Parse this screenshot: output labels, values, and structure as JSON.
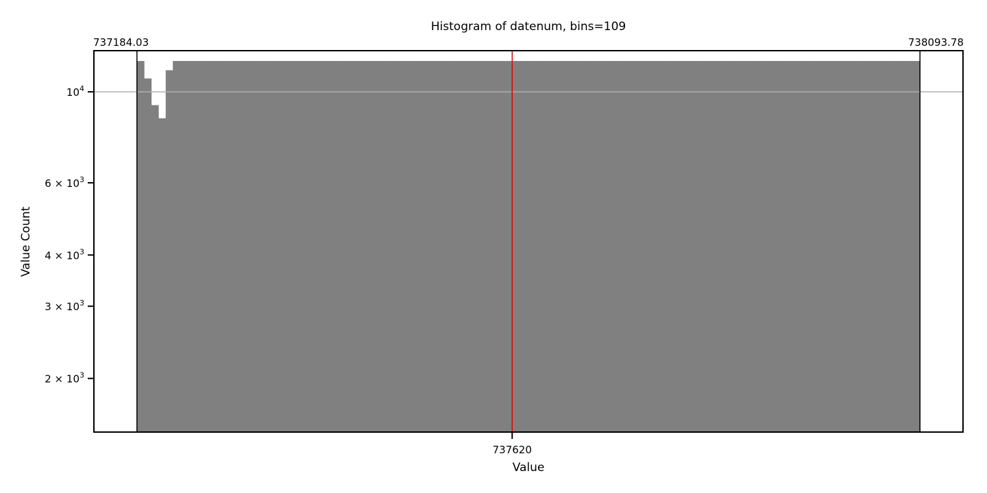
{
  "chart_data": {
    "type": "bar",
    "title": "Histogram of datenum, bins=109",
    "xlabel": "Value",
    "ylabel": "Value Count",
    "y_scale": "log",
    "ylim": [
      1480,
      12600
    ],
    "xlim": [
      737134.03,
      738143.78
    ],
    "data_min": 737184.03,
    "data_max": 738093.78,
    "data_min_label": "737184.03",
    "data_max_label": "738093.78",
    "marker_value": 737620,
    "marker_label": "737620",
    "marker_color": "#e00000",
    "bar_color": "#808080",
    "reference_line": 10000,
    "reference_line_color": "#b0b0b0",
    "y_ticks": [
      {
        "value": 10000,
        "base": "10",
        "exp": "4"
      },
      {
        "value": 6000,
        "base": "6 × 10",
        "exp": "3"
      },
      {
        "value": 4000,
        "base": "4 × 10",
        "exp": "3"
      },
      {
        "value": 3000,
        "base": "3 × 10",
        "exp": "3"
      },
      {
        "value": 2000,
        "base": "2 × 10",
        "exp": "3"
      }
    ],
    "bin_width": 8.34633,
    "values": [
      11890,
      10780,
      9280,
      8620,
      11290,
      11890,
      11890,
      11890,
      11890,
      11890,
      11890,
      11890,
      11890,
      11890,
      11890,
      11890,
      11890,
      11890,
      11890,
      11890,
      11890,
      11890,
      11890,
      11890,
      11890,
      11890,
      11890,
      11890,
      11890,
      11890,
      11890,
      11890,
      11890,
      11890,
      11890,
      11890,
      11890,
      11890,
      11890,
      11890,
      11890,
      11890,
      11890,
      11890,
      11890,
      11890,
      11890,
      11890,
      11890,
      11890,
      11890,
      11890,
      11890,
      11890,
      11890,
      11890,
      11890,
      11890,
      11890,
      11890,
      11890,
      11890,
      11890,
      11890,
      11890,
      11890,
      11890,
      11890,
      11890,
      11890,
      11890,
      11890,
      11890,
      11890,
      11890,
      11890,
      11890,
      11890,
      11890,
      11890,
      11890,
      11890,
      11890,
      11890,
      11890,
      11890,
      11890,
      11890,
      11890,
      11890,
      11890,
      11890,
      11890,
      11890,
      11890,
      11890,
      11890,
      11890,
      11890,
      11890,
      11890,
      11890,
      11890,
      11890,
      11890,
      11890,
      11890,
      11890,
      11890
    ]
  }
}
